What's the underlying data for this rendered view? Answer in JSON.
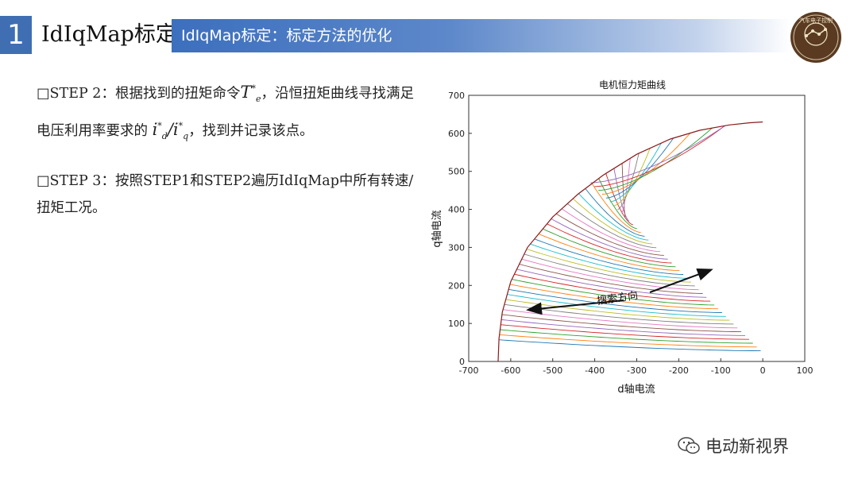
{
  "header": {
    "number": "1",
    "title": "IdIqMap标定",
    "banner": "IdIqMap标定：标定方法的优化",
    "logo_text": "汽车电子控制"
  },
  "body": {
    "step2": {
      "prefix": "□STEP 2：根据找到的扭矩命令",
      "torque_symbol": "T",
      "torque_sub": "e",
      "mid": "，沿恒扭矩曲线寻找满足电压利用率要求的",
      "id_symbol": "i",
      "id_sub": "d",
      "slash": "/",
      "iq_symbol": "i",
      "iq_sub": "q",
      "star": "*",
      "suffix": "，找到并记录该点。"
    },
    "step3": "□STEP 3：按照STEP1和STEP2遍历IdIqMap中所有转速/扭矩工况。"
  },
  "chart_data": {
    "type": "line",
    "title": "电机恒力矩曲线",
    "xlabel": "d轴电流",
    "ylabel": "q轴电流",
    "xlim": [
      -700,
      100
    ],
    "ylim": [
      0,
      700
    ],
    "xticks": [
      "-700",
      "-600",
      "-500",
      "-400",
      "-300",
      "-200",
      "-100",
      "0",
      "100"
    ],
    "yticks": [
      "0",
      "100",
      "200",
      "300",
      "400",
      "500",
      "600",
      "700"
    ],
    "annotation": "搜索方向",
    "envelope": {
      "x": [
        -630,
        -628,
        -620,
        -600,
        -560,
        -500,
        -440,
        -380,
        -300,
        -220,
        -150,
        -80,
        -30,
        0
      ],
      "y": [
        0,
        60,
        130,
        210,
        300,
        380,
        440,
        490,
        545,
        585,
        608,
        622,
        628,
        630
      ]
    },
    "curves": {
      "count": 45,
      "iq_low": 28,
      "iq_high": 470,
      "id_end_low": -5,
      "id_end_high": -410
    },
    "series_colors": [
      "#1f77b4",
      "#ff7f0e",
      "#2ca02c",
      "#d62728",
      "#9467bd",
      "#8c564b",
      "#e377c2",
      "#7f7f7f",
      "#bcbd22",
      "#17becf"
    ]
  },
  "watermark": {
    "text": "电动新视界"
  }
}
